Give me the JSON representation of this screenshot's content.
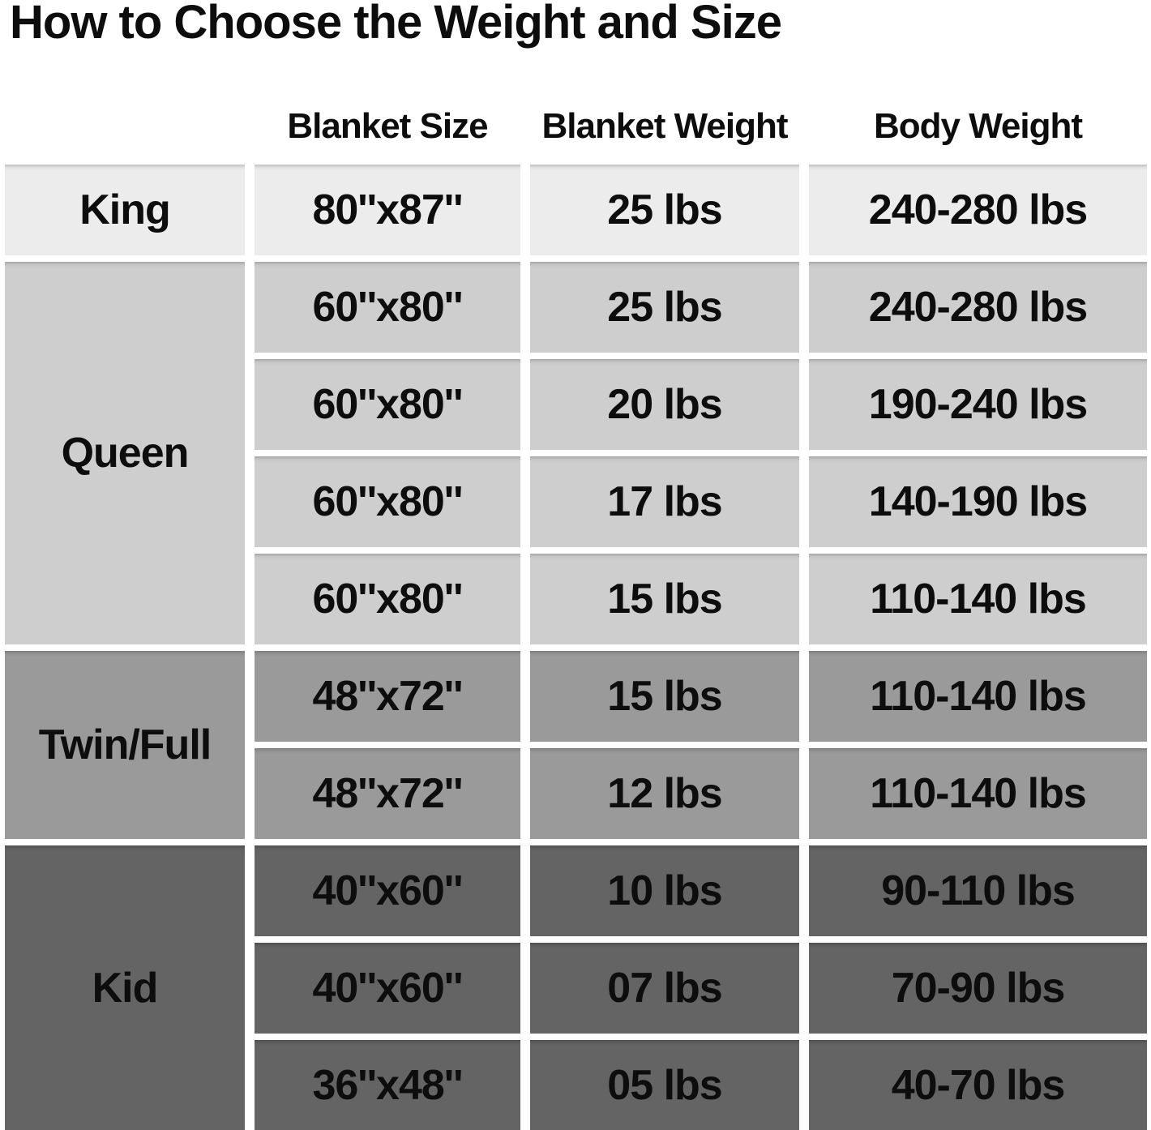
{
  "title": "How to Choose the Weight and Size",
  "colors": {
    "background": "#ffffff",
    "text": "#0d0d0d",
    "band_king": "#ececec",
    "band_queen": "#cecece",
    "band_twin_full": "#9a9a9a",
    "band_kid": "#646464",
    "gap": "#ffffff"
  },
  "chart_data": {
    "type": "table",
    "title": "How to Choose the Weight and Size",
    "column_headers": [
      "Blanket Size",
      "Blanket Weight",
      "Body Weight"
    ],
    "row_groups": [
      {
        "label": "King",
        "band_color": "#ececec",
        "rows": [
          [
            "80''x87''",
            "25 lbs",
            "240-280 lbs"
          ]
        ]
      },
      {
        "label": "Queen",
        "band_color": "#cecece",
        "rows": [
          [
            "60''x80''",
            "25 lbs",
            "240-280 lbs"
          ],
          [
            "60''x80''",
            "20 lbs",
            "190-240 lbs"
          ],
          [
            "60''x80''",
            "17 lbs",
            "140-190 lbs"
          ],
          [
            "60''x80''",
            "15 lbs",
            "110-140 lbs"
          ]
        ]
      },
      {
        "label": "Twin/Full",
        "band_color": "#9a9a9a",
        "rows": [
          [
            "48''x72''",
            "15 lbs",
            "110-140 lbs"
          ],
          [
            "48''x72''",
            "12 lbs",
            "110-140 lbs"
          ]
        ]
      },
      {
        "label": "Kid",
        "band_color": "#646464",
        "rows": [
          [
            "40''x60''",
            "10 lbs",
            "90-110 lbs"
          ],
          [
            "40''x60''",
            "07 lbs",
            "70-90 lbs"
          ],
          [
            "36''x48''",
            "05 lbs",
            "40-70 lbs"
          ]
        ]
      }
    ],
    "layout": {
      "grid": false,
      "legend": false
    }
  }
}
